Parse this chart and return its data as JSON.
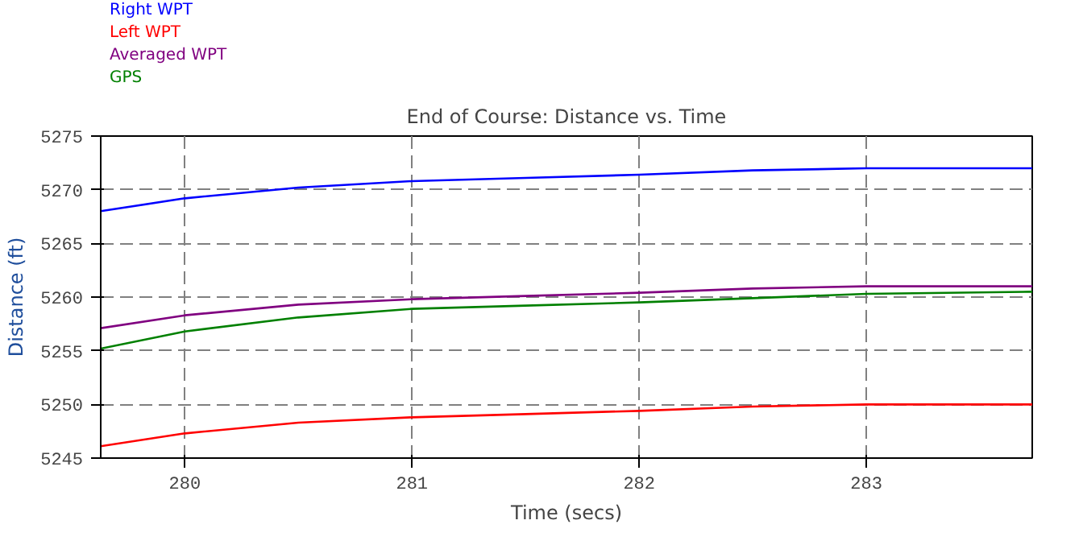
{
  "chart_data": {
    "type": "line",
    "title": "End of Course: Distance vs. Time",
    "xlabel": "Time (secs)",
    "ylabel": "Distance (ft)",
    "x": [
      279.63,
      280,
      280.5,
      281,
      281.5,
      282,
      282.5,
      283,
      283.73
    ],
    "series": [
      {
        "name": "Right WPT",
        "color": "#0000ff",
        "values": [
          5268,
          5269.2,
          5270.2,
          5270.8,
          5271.1,
          5271.4,
          5271.8,
          5272,
          5272
        ]
      },
      {
        "name": "Left WPT",
        "color": "#ff0000",
        "values": [
          5246.1,
          5247.3,
          5248.3,
          5248.8,
          5249.1,
          5249.4,
          5249.8,
          5250,
          5250
        ]
      },
      {
        "name": "Averaged WPT",
        "color": "#800080",
        "values": [
          5257.1,
          5258.3,
          5259.3,
          5259.8,
          5260.1,
          5260.4,
          5260.8,
          5261,
          5261
        ]
      },
      {
        "name": "GPS",
        "color": "#008000",
        "values": [
          5255.2,
          5256.8,
          5258.1,
          5258.9,
          5259.2,
          5259.5,
          5259.9,
          5260.3,
          5260.5
        ]
      }
    ],
    "xlim": [
      279.63,
      283.73
    ],
    "ylim": [
      5245,
      5275
    ],
    "xticks": [
      280,
      281,
      282,
      283
    ],
    "yticks": [
      5245,
      5250,
      5255,
      5260,
      5265,
      5270,
      5275
    ],
    "grid": true,
    "legend": "top left",
    "marker": "none",
    "line_style": "solid"
  }
}
